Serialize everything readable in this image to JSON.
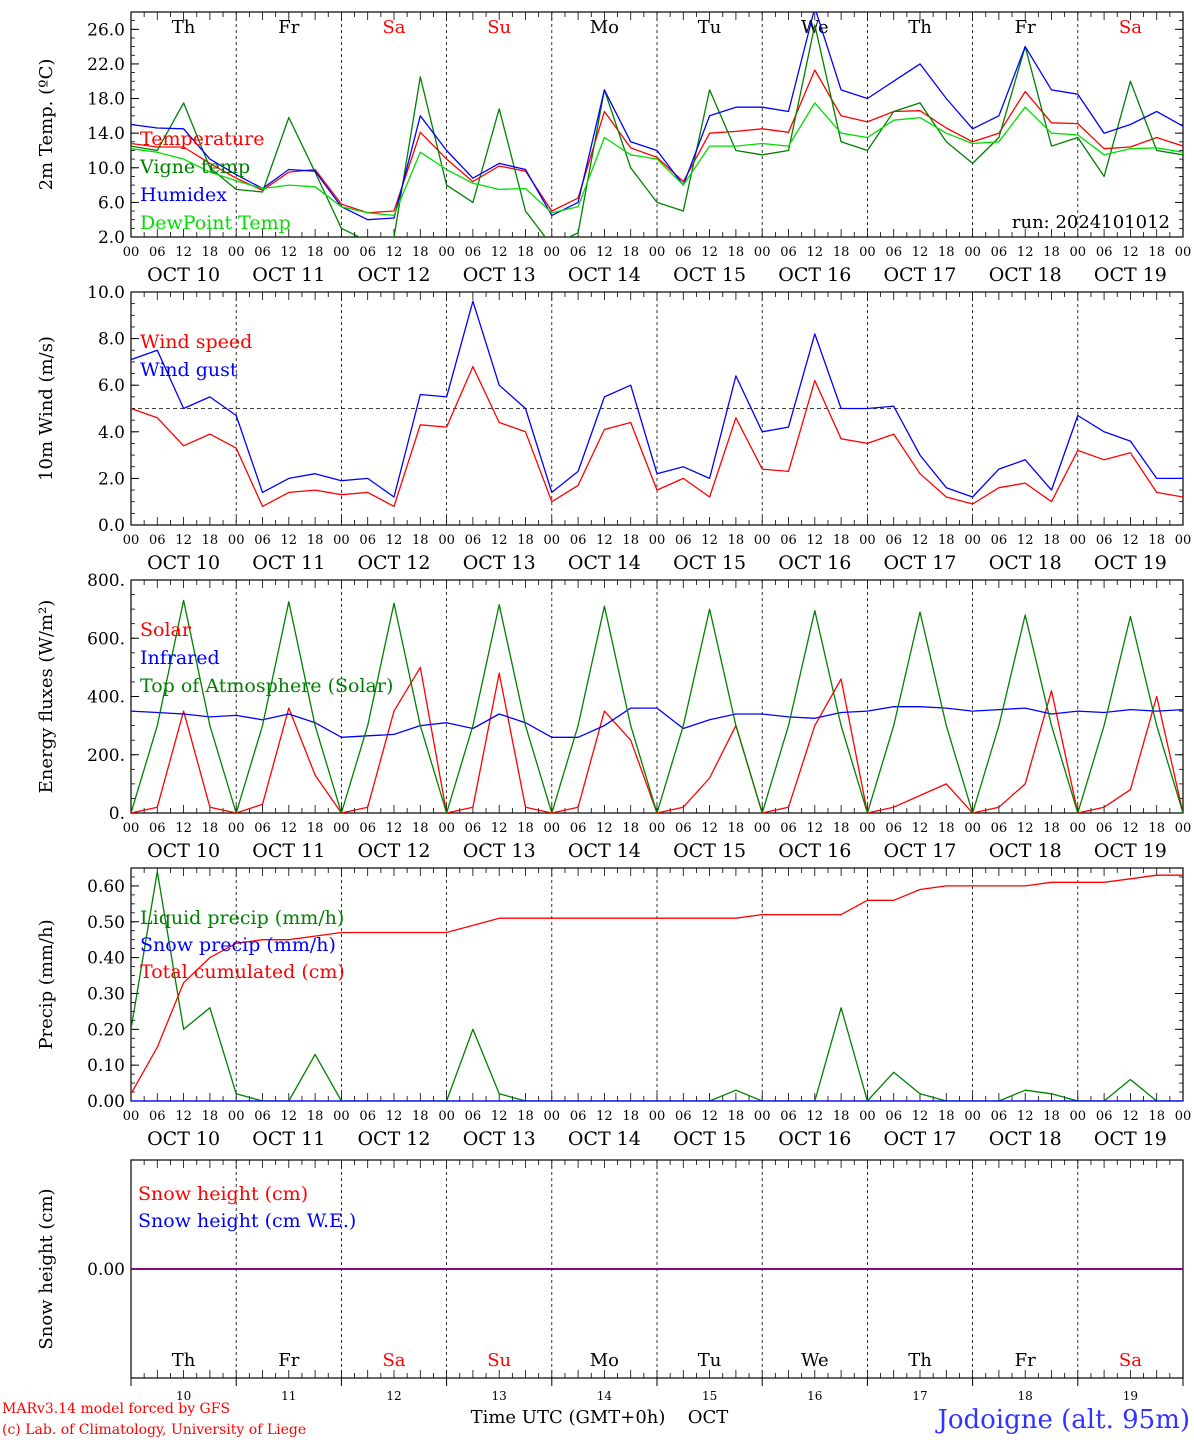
{
  "footer": {
    "credit_line1": "MARv3.14 model forced by GFS",
    "credit_line2": "(c) Lab. of Climatology, University of Liege",
    "xlabel": "Time UTC (GMT+0h)",
    "month": "OCT",
    "station": "Jodoigne (alt. 95m)",
    "day_numbers": [
      "10",
      "11",
      "12",
      "13",
      "14",
      "15",
      "16",
      "17",
      "18",
      "19"
    ]
  },
  "colors": {
    "red": "#ff0000",
    "green": "#008000",
    "blue": "#0000ff",
    "lightgreen": "#00dd00",
    "purple": "#800080",
    "axis": "#000000",
    "station": "#3333ff"
  },
  "chart_data": [
    {
      "type": "line",
      "ylabel": "2m Temp. (ºC)",
      "yticks": [
        "2.0",
        "6.0",
        "10.0",
        "14.0",
        "18.0",
        "22.0",
        "26.0"
      ],
      "ylim": [
        2,
        28
      ],
      "run_label": "run: 2024101012",
      "weekday_labels": [
        "Th",
        "Fr",
        "Sa",
        "Su",
        "Mo",
        "Tu",
        "We",
        "Th",
        "Fr",
        "Sa"
      ],
      "weekday_weekend": [
        false,
        false,
        true,
        true,
        false,
        false,
        false,
        false,
        false,
        true
      ],
      "hour_ticks": [
        "00",
        "06",
        "12",
        "18"
      ],
      "date_labels": [
        "OCT 10",
        "OCT 11",
        "OCT 12",
        "OCT 13",
        "OCT 14",
        "OCT 15",
        "OCT 16",
        "OCT 17",
        "OCT 18",
        "OCT 19"
      ],
      "x_hours": [
        0,
        6,
        12,
        18,
        24,
        30,
        36,
        42,
        48,
        54,
        60,
        66,
        72,
        78,
        84,
        90,
        96,
        102,
        108,
        114,
        120,
        126,
        132,
        138,
        144,
        150,
        156,
        162,
        168,
        174,
        180,
        186,
        192,
        198,
        204,
        210,
        216,
        222,
        228,
        234,
        240
      ],
      "series": [
        {
          "name": "Temperature",
          "color": "red",
          "values": [
            12.8,
            12.4,
            12.4,
            10.5,
            8.8,
            7.4,
            9.5,
            9.8,
            5.8,
            4.8,
            5.0,
            14.1,
            11.0,
            8.4,
            10.2,
            9.6,
            5.0,
            6.5,
            16.5,
            12.3,
            11.2,
            8.4,
            14.0,
            14.2,
            14.5,
            14.1,
            21.3,
            16.0,
            15.3,
            16.5,
            16.6,
            14.6,
            13.0,
            14.0,
            18.8,
            15.2,
            15.1,
            12.2,
            12.4,
            13.5,
            12.5
          ]
        },
        {
          "name": "Vigne temp",
          "color": "green",
          "values": [
            12.5,
            12.0,
            17.5,
            10.0,
            7.5,
            7.2,
            15.8,
            9.5,
            3.0,
            1.5,
            2.0,
            20.5,
            8.0,
            6.0,
            16.8,
            5.0,
            1.0,
            2.5,
            19.0,
            10.0,
            6.0,
            5.0,
            19.0,
            12.0,
            11.5,
            12.0,
            26.5,
            13.0,
            12.0,
            16.5,
            17.5,
            13.0,
            10.5,
            13.5,
            24.0,
            12.5,
            13.5,
            9.0,
            20.0,
            12.0,
            11.5
          ]
        },
        {
          "name": "Humidex",
          "color": "blue",
          "values": [
            15.0,
            14.6,
            14.5,
            11.0,
            9.2,
            7.6,
            9.8,
            9.6,
            5.5,
            4.0,
            4.2,
            16.0,
            12.0,
            8.8,
            10.5,
            9.8,
            4.5,
            6.0,
            19.0,
            13.0,
            12.0,
            8.0,
            16.0,
            17.0,
            17.0,
            16.5,
            28.5,
            19.0,
            18.0,
            20.0,
            22.0,
            18.0,
            14.5,
            16.0,
            24.0,
            19.0,
            18.5,
            14.0,
            15.0,
            16.5,
            14.8
          ]
        },
        {
          "name": "DewPoint Temp",
          "color": "lightgreen",
          "values": [
            12.2,
            11.8,
            11.0,
            9.5,
            8.5,
            7.6,
            8.0,
            7.8,
            5.5,
            4.8,
            4.5,
            11.8,
            9.8,
            8.2,
            7.5,
            7.6,
            4.8,
            5.5,
            13.5,
            11.5,
            11.0,
            8.0,
            12.5,
            12.5,
            12.8,
            12.5,
            17.5,
            14.0,
            13.5,
            15.5,
            15.8,
            14.0,
            12.8,
            13.0,
            17.0,
            14.0,
            13.8,
            11.5,
            12.2,
            12.3,
            11.8
          ]
        }
      ]
    },
    {
      "type": "line",
      "ylabel": "10m Wind (m/s)",
      "yticks": [
        "0.0",
        "2.0",
        "4.0",
        "6.0",
        "8.0",
        "10.0"
      ],
      "ylim": [
        0,
        10
      ],
      "reference_line": 5.0,
      "hour_ticks": [
        "00",
        "06",
        "12",
        "18"
      ],
      "date_labels": [
        "OCT 10",
        "OCT 11",
        "OCT 12",
        "OCT 13",
        "OCT 14",
        "OCT 15",
        "OCT 16",
        "OCT 17",
        "OCT 18",
        "OCT 19"
      ],
      "x_hours": [
        0,
        6,
        12,
        18,
        24,
        30,
        36,
        42,
        48,
        54,
        60,
        66,
        72,
        78,
        84,
        90,
        96,
        102,
        108,
        114,
        120,
        126,
        132,
        138,
        144,
        150,
        156,
        162,
        168,
        174,
        180,
        186,
        192,
        198,
        204,
        210,
        216,
        222,
        228,
        234,
        240
      ],
      "series": [
        {
          "name": "Wind speed",
          "color": "red",
          "values": [
            5.0,
            4.6,
            3.4,
            3.9,
            3.3,
            0.8,
            1.4,
            1.5,
            1.3,
            1.4,
            0.8,
            4.3,
            4.2,
            6.8,
            4.4,
            4.0,
            1.0,
            1.7,
            4.1,
            4.4,
            1.5,
            2.0,
            1.2,
            4.6,
            2.4,
            2.3,
            6.2,
            3.7,
            3.5,
            3.9,
            2.2,
            1.2,
            0.9,
            1.6,
            1.8,
            1.0,
            3.2,
            2.8,
            3.1,
            1.4,
            1.2
          ]
        },
        {
          "name": "Wind gust",
          "color": "blue",
          "values": [
            7.1,
            7.5,
            5.0,
            5.5,
            4.7,
            1.4,
            2.0,
            2.2,
            1.9,
            2.0,
            1.2,
            5.6,
            5.5,
            9.6,
            6.0,
            5.0,
            1.4,
            2.3,
            5.5,
            6.0,
            2.2,
            2.5,
            2.0,
            6.4,
            4.0,
            4.2,
            8.2,
            5.0,
            5.0,
            5.1,
            3.0,
            1.6,
            1.2,
            2.4,
            2.8,
            1.5,
            4.7,
            4.0,
            3.6,
            2.0,
            2.0
          ]
        }
      ]
    },
    {
      "type": "line",
      "ylabel": "Energy fluxes (W/m²)",
      "yticks": [
        "0.",
        "200.",
        "400.",
        "600.",
        "800."
      ],
      "ylim": [
        0,
        800
      ],
      "hour_ticks": [
        "00",
        "06",
        "12",
        "18"
      ],
      "date_labels": [
        "OCT 10",
        "OCT 11",
        "OCT 12",
        "OCT 13",
        "OCT 14",
        "OCT 15",
        "OCT 16",
        "OCT 17",
        "OCT 18",
        "OCT 19"
      ],
      "x_hours": [
        0,
        6,
        12,
        18,
        24,
        30,
        36,
        42,
        48,
        54,
        60,
        66,
        72,
        78,
        84,
        90,
        96,
        102,
        108,
        114,
        120,
        126,
        132,
        138,
        144,
        150,
        156,
        162,
        168,
        174,
        180,
        186,
        192,
        198,
        204,
        210,
        216,
        222,
        228,
        234,
        240
      ],
      "series": [
        {
          "name": "Solar",
          "color": "red",
          "values": [
            0,
            20,
            350,
            20,
            0,
            30,
            360,
            130,
            0,
            20,
            350,
            500,
            0,
            20,
            480,
            20,
            0,
            20,
            350,
            250,
            0,
            20,
            120,
            300,
            0,
            20,
            300,
            460,
            0,
            20,
            60,
            100,
            0,
            20,
            100,
            420,
            0,
            20,
            80,
            400,
            0
          ]
        },
        {
          "name": "Infrared",
          "color": "blue",
          "values": [
            350,
            345,
            340,
            330,
            335,
            320,
            340,
            310,
            260,
            265,
            270,
            300,
            310,
            290,
            340,
            310,
            260,
            260,
            300,
            360,
            360,
            290,
            320,
            340,
            340,
            330,
            325,
            345,
            350,
            365,
            365,
            360,
            350,
            355,
            360,
            340,
            350,
            345,
            355,
            350,
            355
          ]
        },
        {
          "name": "Top of Atmosphere (Solar)",
          "color": "green",
          "values": [
            0,
            300,
            730,
            300,
            0,
            300,
            725,
            300,
            0,
            300,
            720,
            300,
            0,
            300,
            715,
            300,
            0,
            300,
            710,
            300,
            0,
            300,
            700,
            300,
            0,
            300,
            695,
            300,
            0,
            300,
            690,
            300,
            0,
            300,
            680,
            300,
            0,
            300,
            675,
            300,
            0
          ]
        }
      ]
    },
    {
      "type": "line",
      "ylabel": "Precip (mm/h)",
      "yticks": [
        "0.00",
        "0.10",
        "0.20",
        "0.30",
        "0.40",
        "0.50",
        "0.60"
      ],
      "ylim": [
        0,
        0.65
      ],
      "hour_ticks": [
        "00",
        "06",
        "12",
        "18"
      ],
      "date_labels": [
        "OCT 10",
        "OCT 11",
        "OCT 12",
        "OCT 13",
        "OCT 14",
        "OCT 15",
        "OCT 16",
        "OCT 17",
        "OCT 18",
        "OCT 19"
      ],
      "x_hours": [
        0,
        6,
        12,
        18,
        24,
        30,
        36,
        42,
        48,
        54,
        60,
        66,
        72,
        78,
        84,
        90,
        96,
        102,
        108,
        114,
        120,
        126,
        132,
        138,
        144,
        150,
        156,
        162,
        168,
        174,
        180,
        186,
        192,
        198,
        204,
        210,
        216,
        222,
        228,
        234,
        240
      ],
      "series": [
        {
          "name": "Liquid precip (mm/h)",
          "color": "green",
          "values": [
            0.2,
            0.64,
            0.2,
            0.26,
            0.02,
            0.0,
            0.0,
            0.13,
            0.0,
            0.0,
            0.0,
            0.0,
            0.0,
            0.2,
            0.02,
            0.0,
            0.0,
            0.0,
            0.0,
            0.0,
            0.0,
            0.0,
            0.0,
            0.03,
            0.0,
            0.0,
            0.0,
            0.26,
            0.0,
            0.08,
            0.02,
            0.0,
            0.0,
            0.0,
            0.03,
            0.02,
            0.0,
            0.0,
            0.06,
            0.0,
            0.0
          ]
        },
        {
          "name": "Snow precip (mm/h)",
          "color": "blue",
          "values": [
            0,
            0,
            0,
            0,
            0,
            0,
            0,
            0,
            0,
            0,
            0,
            0,
            0,
            0,
            0,
            0,
            0,
            0,
            0,
            0,
            0,
            0,
            0,
            0,
            0,
            0,
            0,
            0,
            0,
            0,
            0,
            0,
            0,
            0,
            0,
            0,
            0,
            0,
            0,
            0,
            0
          ]
        },
        {
          "name": "Total cumulated (cm)",
          "color": "red",
          "values": [
            0.02,
            0.15,
            0.33,
            0.4,
            0.44,
            0.45,
            0.45,
            0.46,
            0.47,
            0.47,
            0.47,
            0.47,
            0.47,
            0.49,
            0.51,
            0.51,
            0.51,
            0.51,
            0.51,
            0.51,
            0.51,
            0.51,
            0.51,
            0.51,
            0.52,
            0.52,
            0.52,
            0.52,
            0.56,
            0.56,
            0.59,
            0.6,
            0.6,
            0.6,
            0.6,
            0.61,
            0.61,
            0.61,
            0.62,
            0.63,
            0.63
          ]
        }
      ]
    },
    {
      "type": "line",
      "ylabel": "Snow height (cm)",
      "yticks": [
        "0.00"
      ],
      "ylim": [
        -1,
        1
      ],
      "weekday_labels": [
        "Th",
        "Fr",
        "Sa",
        "Su",
        "Mo",
        "Tu",
        "We",
        "Th",
        "Fr",
        "Sa"
      ],
      "weekday_weekend": [
        false,
        false,
        true,
        true,
        false,
        false,
        false,
        false,
        false,
        true
      ],
      "series": [
        {
          "name": "Snow height (cm)",
          "color": "red",
          "values": [
            0,
            0
          ]
        },
        {
          "name": "Snow height (cm W.E.)",
          "color": "blue",
          "values": [
            0,
            0
          ]
        }
      ]
    }
  ]
}
